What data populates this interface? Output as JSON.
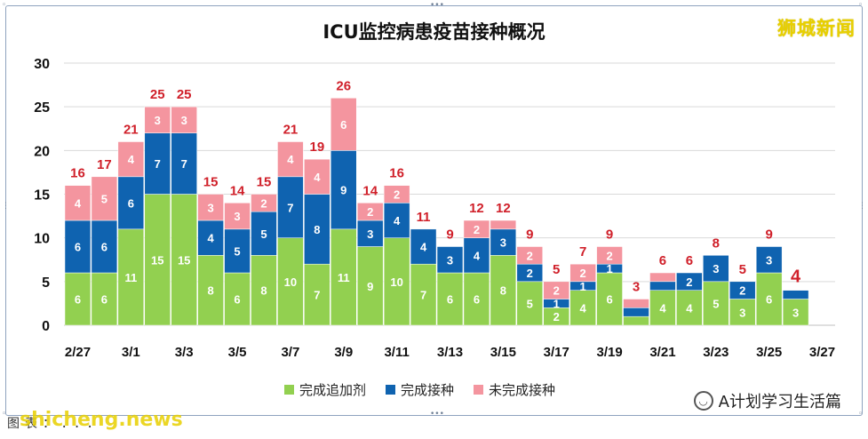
{
  "brand": "狮城新闻",
  "footer": {
    "left_text": "图表：...",
    "watermark": "shicheng.news"
  },
  "wechat_account": "A计划学习生活篇",
  "colors": {
    "booster": "#92d050",
    "vaccinated": "#0f63b0",
    "unvaccinated": "#f4959f",
    "total_label": "#d0202a"
  },
  "chart_data": {
    "type": "bar",
    "stacked": true,
    "title": "ICU监控病患疫苗接种概况",
    "x": [
      "2/27",
      "2/28",
      "3/1",
      "3/2",
      "3/3",
      "3/4",
      "3/5",
      "3/6",
      "3/7",
      "3/8",
      "3/9",
      "3/10",
      "3/11",
      "3/12",
      "3/13",
      "3/14",
      "3/15",
      "3/16",
      "3/17",
      "3/18",
      "3/19",
      "3/20",
      "3/21",
      "3/22",
      "3/23",
      "3/24",
      "3/25",
      "3/26"
    ],
    "x_tick_labels": [
      "2/27",
      "3/1",
      "3/3",
      "3/5",
      "3/7",
      "3/9",
      "3/11",
      "3/13",
      "3/15",
      "3/17",
      "3/19",
      "3/21",
      "3/23",
      "3/25",
      "3/27"
    ],
    "ylim": [
      0,
      30
    ],
    "yticks": [
      0,
      5,
      10,
      15,
      20,
      25,
      30
    ],
    "grid": true,
    "legend_position": "bottom",
    "series": [
      {
        "name": "完成追加剂",
        "color": "#92d050",
        "values": [
          6,
          6,
          11,
          15,
          15,
          8,
          6,
          8,
          10,
          7,
          11,
          9,
          10,
          7,
          6,
          6,
          8,
          5,
          2,
          4,
          6,
          1,
          4,
          4,
          5,
          3,
          6,
          3
        ]
      },
      {
        "name": "完成接种",
        "color": "#0f63b0",
        "values": [
          6,
          6,
          6,
          7,
          7,
          4,
          5,
          5,
          7,
          8,
          9,
          3,
          4,
          4,
          3,
          4,
          3,
          2,
          1,
          1,
          1,
          1,
          1,
          2,
          3,
          2,
          3,
          1
        ]
      },
      {
        "name": "未完成接种",
        "color": "#f4959f",
        "values": [
          4,
          5,
          4,
          3,
          3,
          3,
          3,
          2,
          4,
          4,
          6,
          2,
          2,
          0,
          0,
          2,
          1,
          2,
          2,
          2,
          2,
          1,
          1,
          0,
          0,
          0,
          0,
          0
        ]
      }
    ],
    "totals": [
      16,
      17,
      21,
      25,
      25,
      15,
      14,
      15,
      21,
      19,
      26,
      14,
      16,
      11,
      9,
      12,
      12,
      9,
      5,
      7,
      9,
      3,
      6,
      6,
      8,
      5,
      9,
      4
    ],
    "segment_labels": {
      "完成追加剂": [
        "6",
        "6",
        "11",
        "15",
        "15",
        "8",
        "6",
        "8",
        "10",
        "7",
        "11",
        "9",
        "10",
        "7",
        "6",
        "6",
        "8",
        "5",
        "2",
        "4",
        "6",
        "",
        "4",
        "4",
        "5",
        "3",
        "6",
        "3"
      ],
      "完成接种": [
        "6",
        "6",
        "6",
        "7",
        "7",
        "4",
        "5",
        "5",
        "7",
        "8",
        "9",
        "3",
        "4",
        "4",
        "3",
        "4",
        "3",
        "2",
        "1",
        "1",
        "1",
        "",
        "",
        "2",
        "3",
        "2",
        "3",
        ""
      ],
      "未完成接种": [
        "4",
        "5",
        "4",
        "3",
        "3",
        "3",
        "3",
        "2",
        "4",
        "4",
        "6",
        "2",
        "2",
        "",
        "",
        "2",
        "",
        "2",
        "2",
        "2",
        "2",
        "",
        "",
        "",
        "",
        "",
        "",
        ""
      ]
    }
  }
}
